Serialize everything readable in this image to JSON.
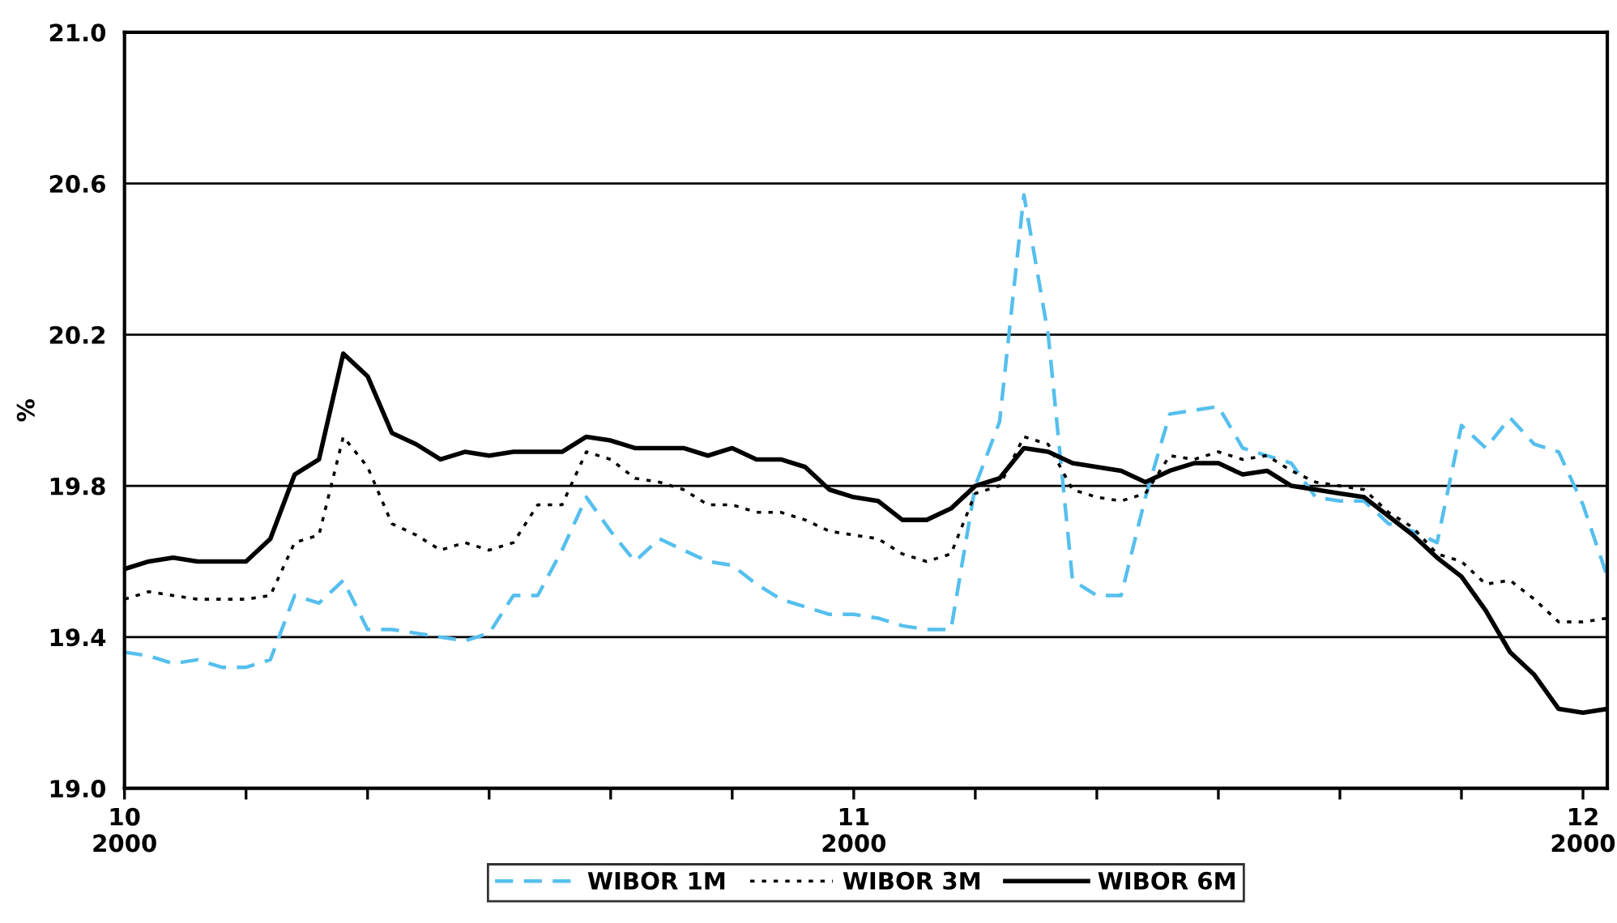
{
  "chart_data": {
    "type": "line",
    "ylabel": "%",
    "categories": [
      "10\n2000",
      null,
      null,
      null,
      null,
      null,
      null,
      null,
      null,
      null,
      null,
      null,
      null,
      null,
      null,
      null,
      null,
      null,
      null,
      null,
      null,
      null,
      null,
      null,
      null,
      null,
      null,
      null,
      null,
      null,
      "11\n2000",
      null,
      null,
      null,
      null,
      null,
      null,
      null,
      null,
      null,
      null,
      null,
      null,
      null,
      null,
      null,
      null,
      null,
      null,
      null,
      null,
      null,
      null,
      null,
      null,
      null,
      null,
      null,
      null,
      null,
      "12\n2000",
      null
    ],
    "series": [
      {
        "name": "WIBOR 1M",
        "color": "#55bfee",
        "line_style": "dashed",
        "values": [
          19.36,
          19.35,
          19.33,
          19.34,
          19.32,
          19.32,
          19.34,
          19.51,
          19.49,
          19.55,
          19.42,
          19.42,
          19.41,
          19.4,
          19.39,
          19.41,
          19.51,
          19.51,
          19.63,
          19.77,
          19.68,
          19.6,
          19.66,
          19.63,
          19.6,
          19.59,
          19.54,
          19.5,
          19.48,
          19.46,
          19.46,
          19.45,
          19.43,
          19.42,
          19.42,
          19.8,
          19.97,
          20.57,
          20.2,
          19.55,
          19.51,
          19.51,
          19.77,
          19.99,
          20.0,
          20.01,
          19.9,
          19.88,
          19.86,
          19.77,
          19.76,
          19.76,
          19.7,
          19.68,
          19.65,
          19.96,
          19.9,
          19.98,
          19.91,
          19.89,
          19.75,
          19.56
        ]
      },
      {
        "name": "WIBOR 3M",
        "color": "#000000",
        "line_style": "dotted",
        "values": [
          19.5,
          19.52,
          19.51,
          19.5,
          19.5,
          19.5,
          19.51,
          19.65,
          19.67,
          19.93,
          19.85,
          19.7,
          19.67,
          19.63,
          19.65,
          19.63,
          19.65,
          19.75,
          19.75,
          19.89,
          19.87,
          19.82,
          19.81,
          19.79,
          19.75,
          19.75,
          19.73,
          19.73,
          19.71,
          19.68,
          19.67,
          19.66,
          19.62,
          19.6,
          19.62,
          19.78,
          19.8,
          19.93,
          19.91,
          19.79,
          19.77,
          19.76,
          19.78,
          19.88,
          19.87,
          19.89,
          19.87,
          19.88,
          19.84,
          19.81,
          19.8,
          19.79,
          19.73,
          19.69,
          19.62,
          19.6,
          19.54,
          19.55,
          19.5,
          19.44,
          19.44,
          19.45
        ]
      },
      {
        "name": "WIBOR 6M",
        "color": "#000000",
        "line_style": "solid",
        "values": [
          19.58,
          19.6,
          19.61,
          19.6,
          19.6,
          19.6,
          19.66,
          19.83,
          19.87,
          20.15,
          20.09,
          19.94,
          19.91,
          19.87,
          19.89,
          19.88,
          19.89,
          19.89,
          19.89,
          19.93,
          19.92,
          19.9,
          19.9,
          19.9,
          19.88,
          19.9,
          19.87,
          19.87,
          19.85,
          19.79,
          19.77,
          19.76,
          19.71,
          19.71,
          19.74,
          19.8,
          19.82,
          19.9,
          19.89,
          19.86,
          19.85,
          19.84,
          19.81,
          19.84,
          19.86,
          19.86,
          19.83,
          19.84,
          19.8,
          19.79,
          19.78,
          19.77,
          19.72,
          19.67,
          19.61,
          19.56,
          19.47,
          19.36,
          19.3,
          19.21,
          19.2,
          19.21
        ]
      }
    ],
    "ylim": [
      19.0,
      21.0
    ],
    "yticks": [
      {
        "value": 19.0,
        "label": "19.0"
      },
      {
        "value": 19.4,
        "label": "19.4"
      },
      {
        "value": 19.8,
        "label": "19.8"
      },
      {
        "value": 20.2,
        "label": "20.2"
      },
      {
        "value": 20.6,
        "label": "20.6"
      },
      {
        "value": 21.0,
        "label": "21.0"
      }
    ],
    "grid": "y",
    "legend": "bottom",
    "marker": "none"
  }
}
